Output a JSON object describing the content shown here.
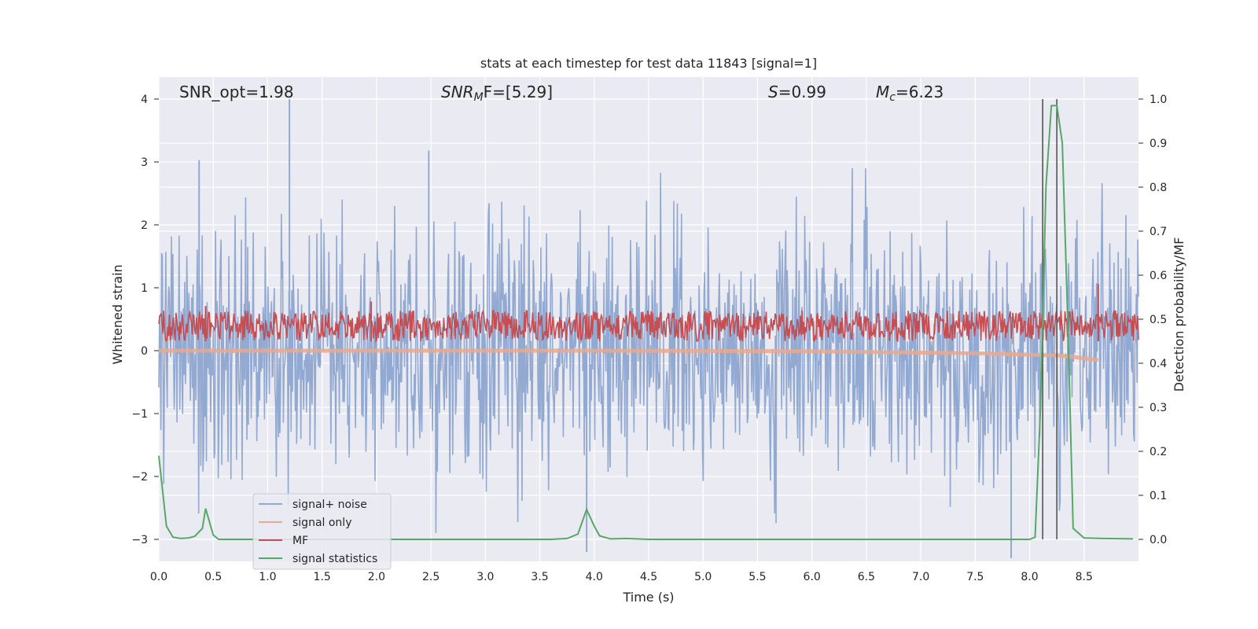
{
  "chart_data": {
    "type": "line",
    "title": "stats at each timestep for test data 11843 [signal=1]",
    "xlabel": "Time (s)",
    "ylabel_left": "Whitened strain",
    "ylabel_right": "Detection probability/MF",
    "xlim": [
      0.0,
      9.0
    ],
    "ylim_left": [
      -3.35,
      4.35
    ],
    "ylim_right": [
      -0.05,
      1.05
    ],
    "x_ticks": [
      "0.0",
      "0.5",
      "1.0",
      "1.5",
      "2.0",
      "2.5",
      "3.0",
      "3.5",
      "4.0",
      "4.5",
      "5.0",
      "5.5",
      "6.0",
      "6.5",
      "7.0",
      "7.5",
      "8.0",
      "8.5"
    ],
    "y_left_ticks": [
      "−3",
      "−2",
      "−1",
      "0",
      "1",
      "2",
      "3",
      "4"
    ],
    "y_right_ticks": [
      "0.0",
      "0.1",
      "0.2",
      "0.3",
      "0.4",
      "0.5",
      "0.6",
      "0.7",
      "0.8",
      "0.9",
      "1.0"
    ],
    "grid": true,
    "legend_position": "lower-left",
    "annotations": {
      "snr_opt": "SNR_opt=1.98",
      "snr_mf_main": "SNR",
      "snr_mf_sub": "M",
      "snr_mf_rest": "F=[5.29]",
      "s_main": "S",
      "s_rest": "=0.99",
      "mc_main": "M",
      "mc_sub": "c",
      "mc_rest": "=6.23"
    },
    "vertical_markers_x": [
      8.12,
      8.25
    ],
    "series": [
      {
        "name": "signal+ noise",
        "color": "#92a9d2",
        "axis": "left",
        "description_range": [
          -3.3,
          4.0
        ],
        "notable_peaks": [
          [
            1.2,
            4.0
          ],
          [
            0.37,
            3.03
          ],
          [
            2.48,
            3.18
          ],
          [
            7.83,
            -3.3
          ],
          [
            3.93,
            -3.2
          ]
        ]
      },
      {
        "name": "signal only",
        "color": "#e8a98e",
        "axis": "left",
        "x": [
          0.0,
          4.0,
          6.0,
          7.5,
          8.3,
          8.5,
          8.63
        ],
        "y": [
          0.0,
          0.0,
          -0.01,
          -0.04,
          -0.08,
          -0.12,
          -0.15
        ]
      },
      {
        "name": "MF",
        "color": "#c44e52",
        "axis": "right",
        "band": [
          0.45,
          0.52
        ],
        "notable_peaks": [
          [
            0.43,
            0.53
          ],
          [
            1.95,
            0.54
          ],
          [
            8.63,
            0.58
          ]
        ]
      },
      {
        "name": "signal statistics",
        "color": "#55a868",
        "axis": "right",
        "x": [
          0.0,
          0.07,
          0.13,
          0.2,
          0.27,
          0.33,
          0.4,
          0.43,
          0.5,
          0.55,
          0.7,
          1.0,
          2.0,
          3.0,
          3.6,
          3.75,
          3.85,
          3.93,
          4.0,
          4.05,
          4.15,
          4.3,
          4.5,
          5.0,
          6.0,
          7.0,
          7.5,
          8.0,
          8.05,
          8.1,
          8.15,
          8.2,
          8.25,
          8.3,
          8.35,
          8.4,
          8.5,
          8.7,
          8.95
        ],
        "y": [
          0.19,
          0.03,
          0.005,
          0.002,
          0.003,
          0.007,
          0.025,
          0.07,
          0.01,
          0.0,
          0.0,
          0.0,
          0.0,
          0.0,
          0.0,
          0.002,
          0.012,
          0.068,
          0.03,
          0.008,
          0.001,
          0.002,
          0.0,
          0.0,
          0.0,
          0.0,
          0.0,
          0.0,
          0.005,
          0.3,
          0.8,
          0.985,
          0.985,
          0.9,
          0.5,
          0.025,
          0.003,
          0.002,
          0.001
        ]
      }
    ]
  },
  "colors": {
    "plot_bg": "#eaeaf2",
    "grid": "#ffffff",
    "marker_lines": "#555555"
  }
}
